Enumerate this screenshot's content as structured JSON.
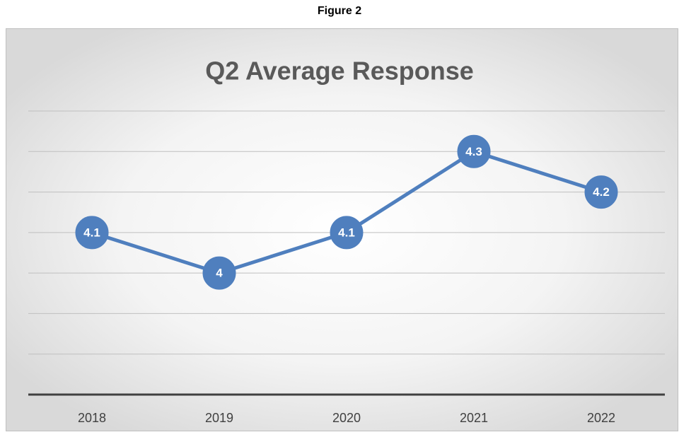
{
  "caption": "Figure 2",
  "chart_data": {
    "type": "line",
    "title": "Q2 Average Response",
    "categories": [
      "2018",
      "2019",
      "2020",
      "2021",
      "2022"
    ],
    "values": [
      4.1,
      4,
      4.1,
      4.3,
      4.2
    ],
    "color": "#4f7fbe",
    "ylim": [
      3.7,
      4.4
    ],
    "yticks": [
      3.7,
      3.8,
      3.9,
      4.0,
      4.1,
      4.2,
      4.3,
      4.4
    ],
    "ytick_labels": false,
    "grid": true
  }
}
